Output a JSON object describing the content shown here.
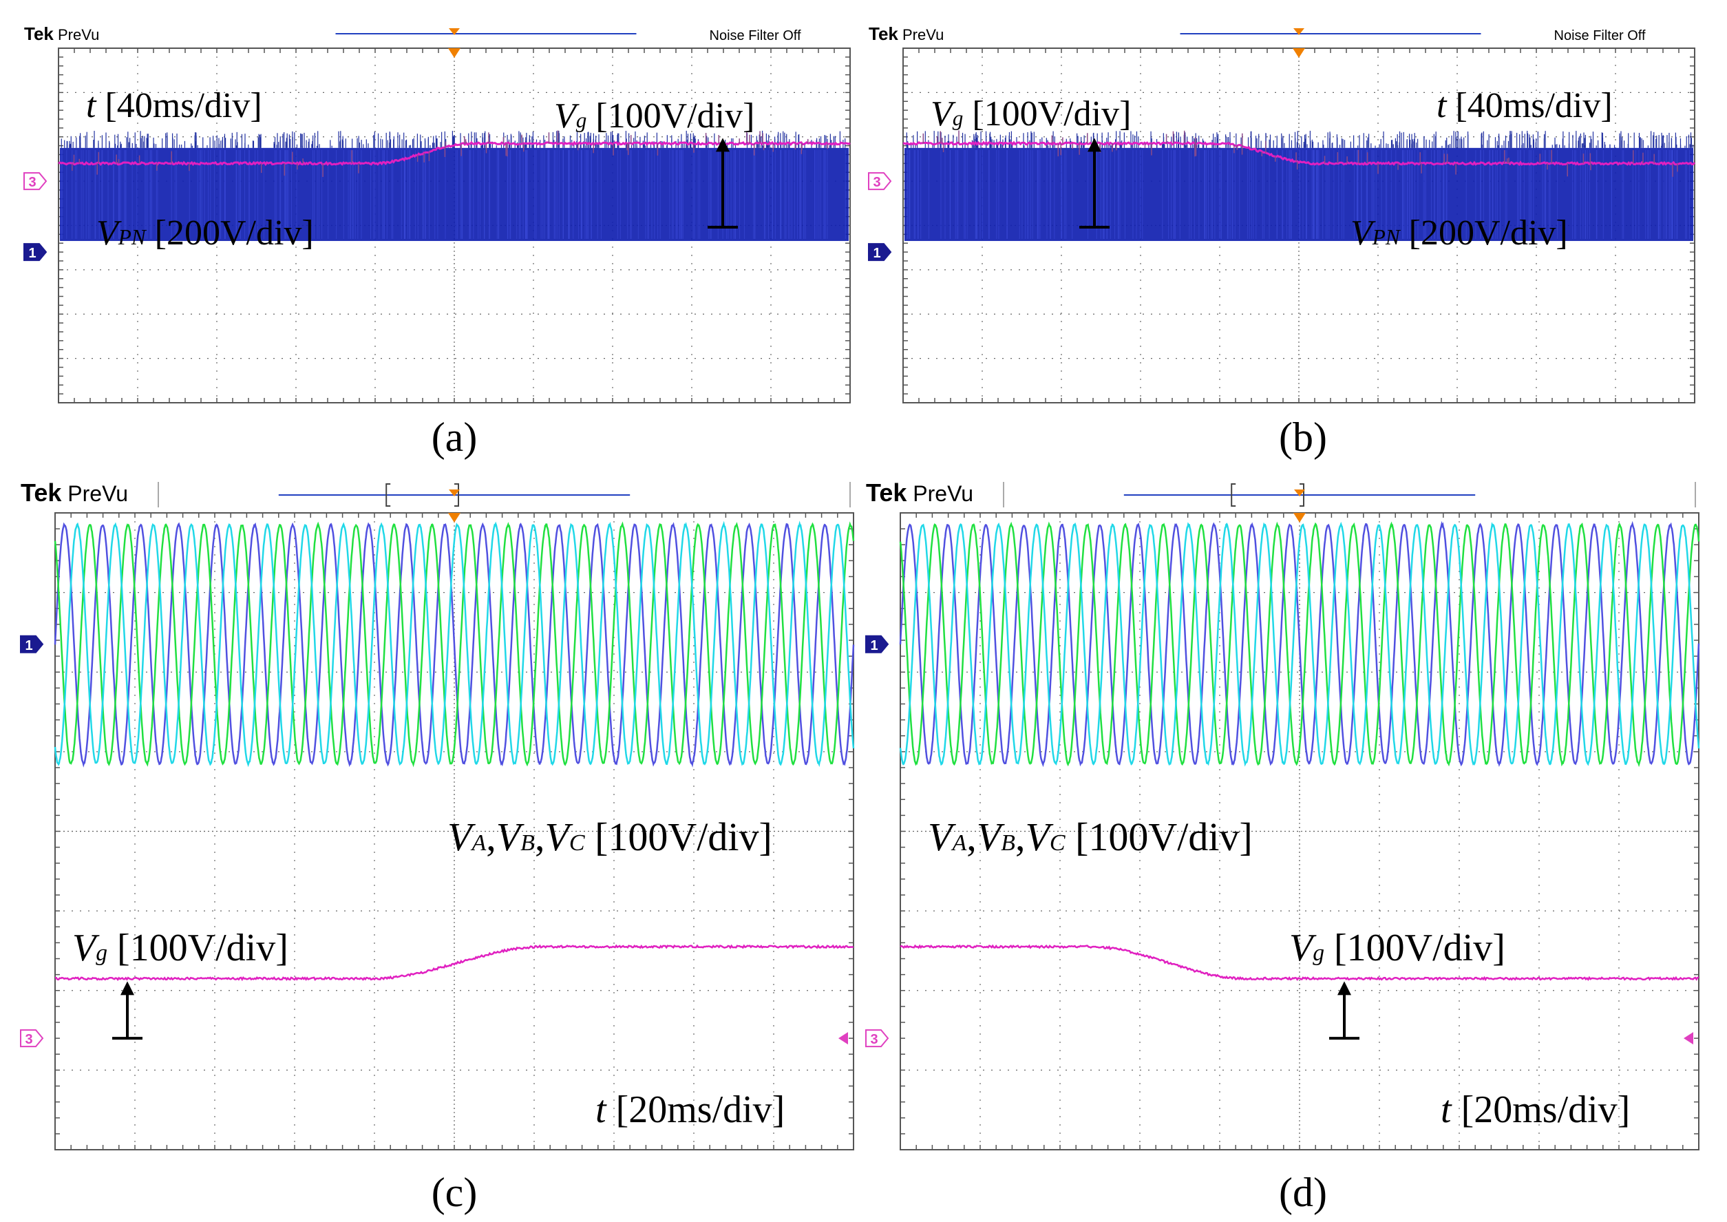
{
  "figure": {
    "brand": "Tek",
    "mode": "PreVu",
    "noise_filter": "Noise Filter Off",
    "ch1_marker": "1",
    "ch3_marker": "3"
  },
  "colors": {
    "vg": "#e020c0",
    "vpn": "#1020b0",
    "va": "#5050e0",
    "vb": "#20e040",
    "vc": "#20d8e8",
    "grid": "#666666",
    "ch1": "#1a1a90",
    "ch3": "#e040c0",
    "trigger": "#f08000",
    "record_bar": "#2040c0"
  },
  "chart_data": [
    {
      "type": "line",
      "panel_label": "(a)",
      "time_scale": {
        "symbol": "t",
        "value": "[40ms/div]"
      },
      "divisions": {
        "x": 10,
        "y": 8
      },
      "series": [
        {
          "name": "Vg",
          "symbol": "V",
          "sub": "g",
          "scale": "[100V/div]",
          "shape": "step-up",
          "start_level_div": 1.4,
          "end_level_div": 1.85,
          "ramp_start_div": 4.0,
          "ramp_end_div": 5.2
        },
        {
          "name": "VPN",
          "symbol": "V",
          "sub": "PN",
          "scale": "[200V/div]",
          "shape": "pwm-band",
          "low_div": -0.35,
          "high_div": 1.75
        }
      ]
    },
    {
      "type": "line",
      "panel_label": "(b)",
      "time_scale": {
        "symbol": "t",
        "value": "[40ms/div]"
      },
      "divisions": {
        "x": 10,
        "y": 8
      },
      "series": [
        {
          "name": "Vg",
          "symbol": "V",
          "sub": "g",
          "scale": "[100V/div]",
          "shape": "step-down",
          "start_level_div": 1.85,
          "end_level_div": 1.4,
          "ramp_start_div": 4.0,
          "ramp_end_div": 5.2
        },
        {
          "name": "VPN",
          "symbol": "V",
          "sub": "PN",
          "scale": "[200V/div]",
          "shape": "pwm-band",
          "low_div": -0.35,
          "high_div": 1.75
        }
      ]
    },
    {
      "type": "line",
      "panel_label": "(c)",
      "time_scale": {
        "symbol": "t",
        "value": "[20ms/div]"
      },
      "divisions": {
        "x": 10,
        "y": 8
      },
      "phase_label": {
        "names": [
          "V",
          "A",
          ",",
          "V",
          "B",
          ",",
          "V",
          "C"
        ],
        "scale": "[100V/div]"
      },
      "series": [
        {
          "name": "VA",
          "shape": "sine",
          "cycles": 21,
          "amplitude_div": 1.5,
          "phase_deg": 0
        },
        {
          "name": "VB",
          "shape": "sine",
          "cycles": 21,
          "amplitude_div": 1.5,
          "phase_deg": 120
        },
        {
          "name": "VC",
          "shape": "sine",
          "cycles": 21,
          "amplitude_div": 1.5,
          "phase_deg": 240
        },
        {
          "name": "Vg",
          "symbol": "V",
          "sub": "g",
          "scale": "[100V/div]",
          "shape": "step-up",
          "start_level_div": 1.15,
          "end_level_div": 1.55,
          "ramp_start_div": 4.0,
          "ramp_end_div": 6.1
        }
      ]
    },
    {
      "type": "line",
      "panel_label": "(d)",
      "time_scale": {
        "symbol": "t",
        "value": "[20ms/div]"
      },
      "divisions": {
        "x": 10,
        "y": 8
      },
      "phase_label": {
        "names": [
          "V",
          "A",
          ",",
          "V",
          "B",
          ",",
          "V",
          "C"
        ],
        "scale": "[100V/div]"
      },
      "series": [
        {
          "name": "VA",
          "shape": "sine",
          "cycles": 21,
          "amplitude_div": 1.5,
          "phase_deg": 0
        },
        {
          "name": "VB",
          "shape": "sine",
          "cycles": 21,
          "amplitude_div": 1.5,
          "phase_deg": 120
        },
        {
          "name": "VC",
          "shape": "sine",
          "cycles": 21,
          "amplitude_div": 1.5,
          "phase_deg": 240
        },
        {
          "name": "Vg",
          "symbol": "V",
          "sub": "g",
          "scale": "[100V/div]",
          "shape": "step-down",
          "start_level_div": 1.55,
          "end_level_div": 1.15,
          "ramp_start_div": 2.4,
          "ramp_end_div": 4.3
        }
      ]
    }
  ]
}
